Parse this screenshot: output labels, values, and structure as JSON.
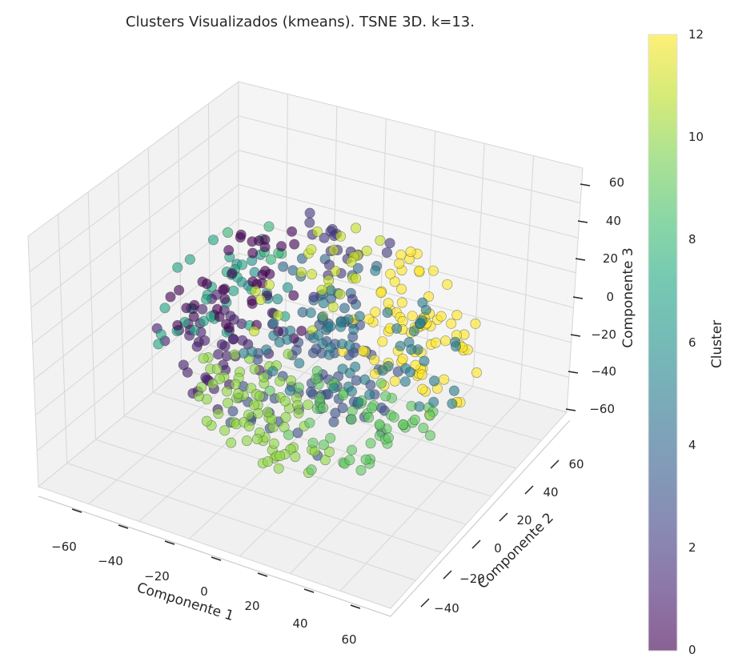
{
  "chart_data": {
    "type": "scatter",
    "title": "Clusters Visualizados (kmeans). TSNE 3D. k=13.",
    "xlabel": "Componente 1",
    "ylabel": "Componente 2",
    "zlabel": "Componente 3",
    "xticks": [
      "−60",
      "−40",
      "−20",
      "0",
      "20",
      "40",
      "60"
    ],
    "yticks": [
      "−40",
      "−20",
      "0",
      "20",
      "40",
      "60"
    ],
    "zticks": [
      "60",
      "40",
      "20",
      "0",
      "−20",
      "−40",
      "−60"
    ],
    "xlim": [
      -70,
      70
    ],
    "ylim": [
      -70,
      70
    ],
    "zlim": [
      -65,
      65
    ],
    "colorbar": {
      "label": "Cluster",
      "ticks": [
        "12",
        "10",
        "8",
        "6",
        "4",
        "2",
        "0"
      ],
      "range": [
        0,
        12
      ],
      "colormap": "viridis"
    },
    "n_clusters": 13,
    "n_points": 560,
    "colors": [
      "#440154",
      "#482475",
      "#414487",
      "#355f8d",
      "#2a788e",
      "#21918c",
      "#22a884",
      "#44bf70",
      "#7ad151",
      "#bddf26",
      "#fde725"
    ],
    "grid": true
  }
}
